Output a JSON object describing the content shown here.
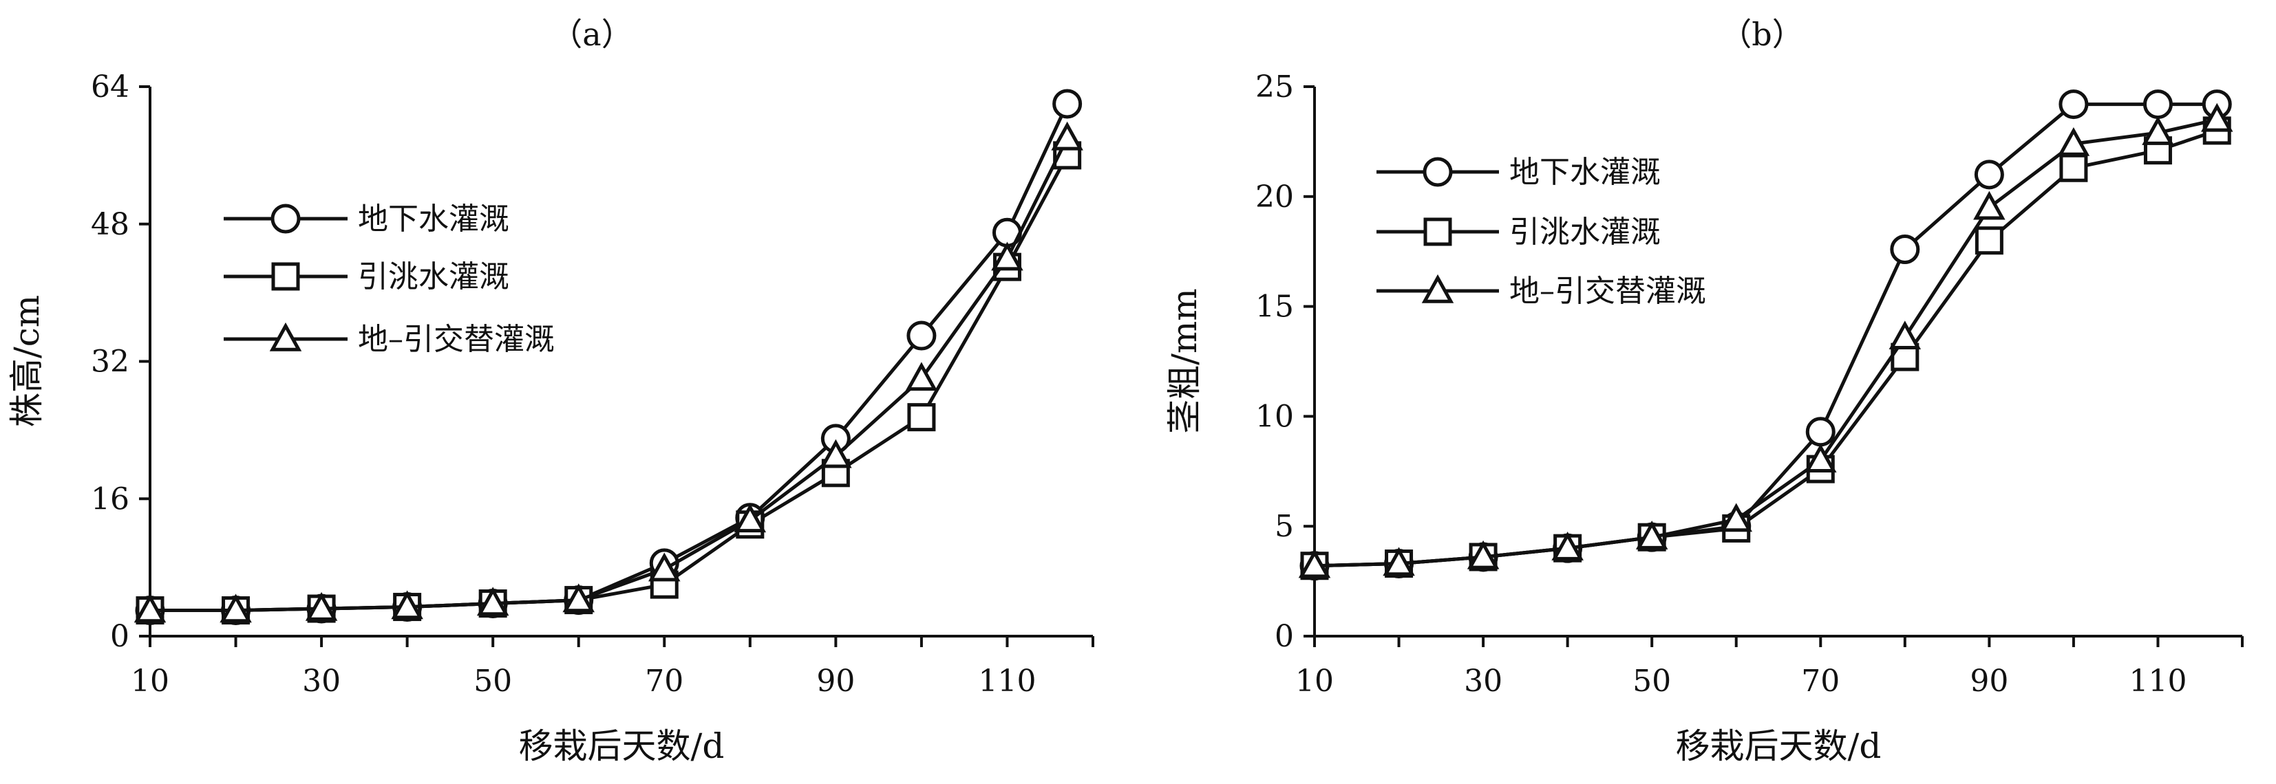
{
  "chart_data": [
    {
      "type": "line",
      "title": "（a）",
      "xlabel": "移栽后天数/d",
      "ylabel": "株高/cm",
      "xlim": [
        10,
        120
      ],
      "ylim": [
        0,
        64
      ],
      "x": [
        10,
        20,
        30,
        40,
        50,
        60,
        70,
        80,
        90,
        100,
        110,
        117
      ],
      "xticks": [
        "10",
        "30",
        "50",
        "70",
        "90",
        "110"
      ],
      "xtick_values": [
        10,
        30,
        50,
        70,
        90,
        110
      ],
      "yticks": [
        "0",
        "16",
        "32",
        "48",
        "64"
      ],
      "ytick_values": [
        0,
        16,
        32,
        48,
        64
      ],
      "legend_position": "upper-left",
      "series": [
        {
          "name": "地下水灌溉",
          "marker": "circle",
          "values": [
            3,
            3,
            3.2,
            3.4,
            3.8,
            4.2,
            8.5,
            13.8,
            23,
            35,
            47,
            62
          ]
        },
        {
          "name": "引洮水灌溉",
          "marker": "square",
          "values": [
            3,
            3,
            3.2,
            3.4,
            3.8,
            4.2,
            6,
            13,
            19,
            25.5,
            43,
            56
          ]
        },
        {
          "name": "地–引交替灌溉",
          "marker": "triangle",
          "values": [
            3,
            3,
            3.2,
            3.4,
            3.8,
            4.2,
            7.8,
            13.5,
            21,
            30,
            44,
            58
          ]
        }
      ]
    },
    {
      "type": "line",
      "title": "（b）",
      "xlabel": "移栽后天数/d",
      "ylabel": "茎粗/mm",
      "xlim": [
        10,
        120
      ],
      "ylim": [
        0,
        25
      ],
      "x": [
        10,
        20,
        30,
        40,
        50,
        60,
        70,
        80,
        90,
        100,
        110,
        117
      ],
      "xticks": [
        "10",
        "30",
        "50",
        "70",
        "90",
        "110"
      ],
      "xtick_values": [
        10,
        30,
        50,
        70,
        90,
        110
      ],
      "yticks": [
        "0",
        "5",
        "10",
        "15",
        "20",
        "25"
      ],
      "ytick_values": [
        0,
        5,
        10,
        15,
        20,
        25
      ],
      "legend_position": "upper-left",
      "series": [
        {
          "name": "地下水灌溉",
          "marker": "circle",
          "values": [
            3.2,
            3.3,
            3.6,
            4,
            4.5,
            5,
            9.3,
            17.6,
            21,
            24.2,
            24.2,
            24.2
          ]
        },
        {
          "name": "引洮水灌溉",
          "marker": "square",
          "values": [
            3.2,
            3.3,
            3.6,
            4,
            4.5,
            4.9,
            7.6,
            12.7,
            18,
            21.3,
            22.1,
            23
          ]
        },
        {
          "name": "地–引交替灌溉",
          "marker": "triangle",
          "values": [
            3.2,
            3.3,
            3.6,
            4,
            4.5,
            5.3,
            8,
            13.6,
            19.5,
            22.4,
            22.9,
            23.5
          ]
        }
      ]
    }
  ]
}
